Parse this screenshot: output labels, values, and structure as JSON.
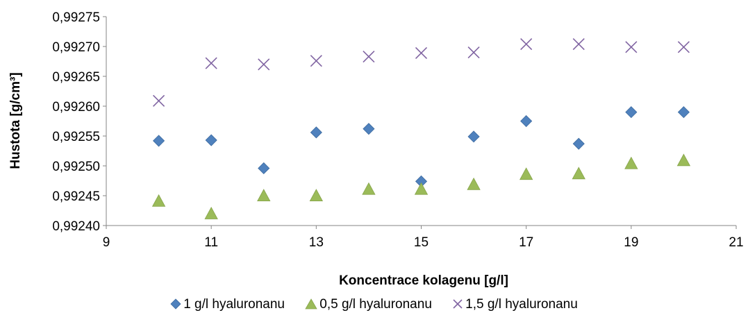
{
  "chart_data": {
    "type": "scatter",
    "title": "",
    "xlabel": "Koncentrace kolagenu [g/l]",
    "ylabel": "Hustota [g/cm³]",
    "xlim": [
      9,
      21
    ],
    "ylim": [
      0.9924,
      0.99275
    ],
    "x_ticks": [
      9,
      11,
      13,
      15,
      17,
      19,
      21
    ],
    "x_tick_labels": [
      "9",
      "11",
      "13",
      "15",
      "17",
      "19",
      "21"
    ],
    "y_ticks": [
      0.9924,
      0.99245,
      0.9925,
      0.99255,
      0.9926,
      0.99265,
      0.9927,
      0.99275
    ],
    "y_tick_labels": [
      "0,99240",
      "0,99245",
      "0,99250",
      "0,99255",
      "0,99260",
      "0,99265",
      "0,99270",
      "0,99275"
    ],
    "grid": false,
    "legend_position": "bottom",
    "series": [
      {
        "name": "1 g/l hyaluronanu",
        "marker": "diamond",
        "color": "#4F81BD",
        "x": [
          10,
          11,
          12,
          13,
          14,
          15,
          16,
          17,
          18,
          19,
          20
        ],
        "y": [
          0.992542,
          0.992543,
          0.992496,
          0.992556,
          0.992562,
          0.992474,
          0.992549,
          0.992575,
          0.992537,
          0.99259,
          0.99259
        ]
      },
      {
        "name": "0,5 g/l hyaluronanu",
        "marker": "triangle",
        "color": "#9BBB59",
        "x": [
          10,
          11,
          12,
          13,
          14,
          15,
          16,
          17,
          18,
          19,
          20
        ],
        "y": [
          0.992441,
          0.99242,
          0.99245,
          0.99245,
          0.992461,
          0.992461,
          0.992469,
          0.992486,
          0.992487,
          0.992504,
          0.992509
        ]
      },
      {
        "name": "1,5 g/l hyaluronanu",
        "marker": "x",
        "color": "#8064A2",
        "x": [
          10,
          11,
          12,
          13,
          14,
          15,
          16,
          17,
          18,
          19,
          20
        ],
        "y": [
          0.992609,
          0.992672,
          0.99267,
          0.992676,
          0.992683,
          0.992689,
          0.99269,
          0.992704,
          0.992704,
          0.992699,
          0.992699
        ]
      }
    ]
  }
}
